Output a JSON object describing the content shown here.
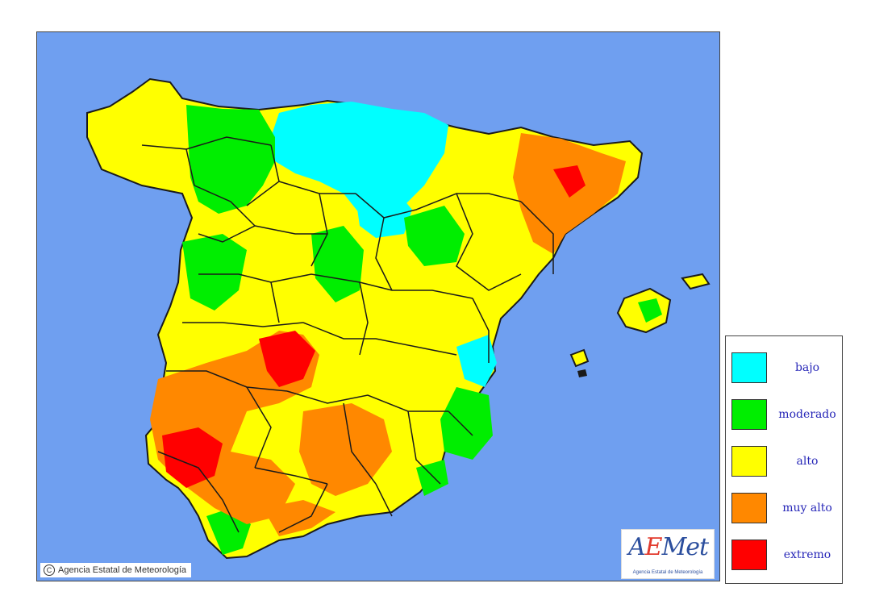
{
  "map": {
    "copyright": "Agencia Estatal de Meteorología",
    "logo": {
      "mark": "AEMet",
      "subtitle": "Agencia Estatal de Meteorología"
    },
    "colors": {
      "sea": "#6f9ff0",
      "border": "#1a1a1a"
    }
  },
  "legend": {
    "items": [
      {
        "label": "bajo",
        "color": "#00ffff"
      },
      {
        "label": "moderado",
        "color": "#00ee00"
      },
      {
        "label": "alto",
        "color": "#ffff00"
      },
      {
        "label": "muy alto",
        "color": "#ff8800"
      },
      {
        "label": "extremo",
        "color": "#ff0000"
      }
    ]
  }
}
